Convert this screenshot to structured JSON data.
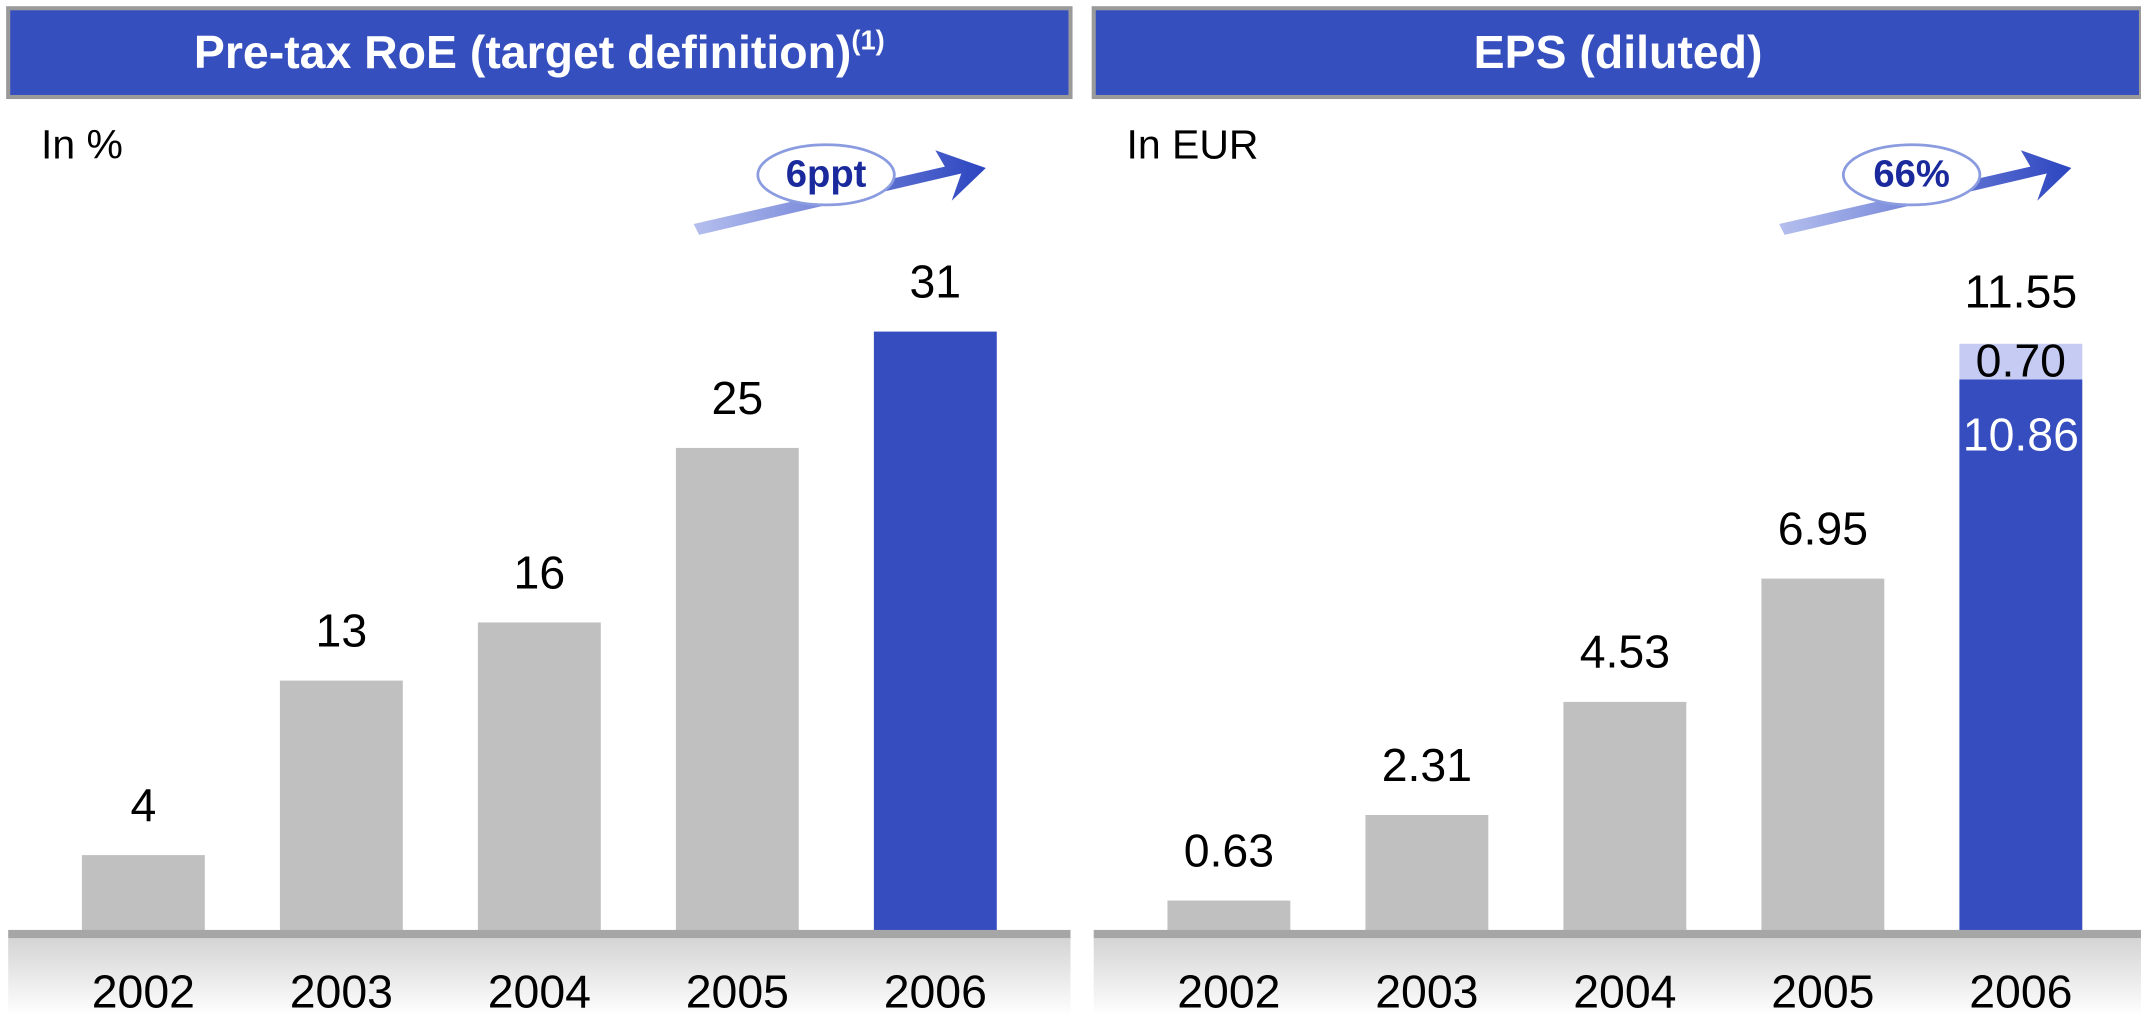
{
  "chart_data": [
    {
      "type": "bar",
      "title": "Pre-tax RoE (target definition)",
      "title_superscript": "(1)",
      "unit_label": "In %",
      "annotation": "6ppt",
      "categories": [
        "2002",
        "2003",
        "2004",
        "2005",
        "2006"
      ],
      "series": [
        {
          "values": [
            4,
            13,
            16,
            25,
            31
          ],
          "colors": [
            "#c0c0c0",
            "#c0c0c0",
            "#c0c0c0",
            "#c0c0c0",
            "#354dbe"
          ]
        }
      ],
      "ylim": [
        0,
        35
      ]
    },
    {
      "type": "stacked_bar",
      "title": "EPS (diluted)",
      "unit_label": "In EUR",
      "annotation": "66%",
      "categories": [
        "2002",
        "2003",
        "2004",
        "2005",
        "2006"
      ],
      "series": [
        {
          "values": [
            0.63,
            2.31,
            4.53,
            6.95,
            10.86
          ],
          "colors": [
            "#c0c0c0",
            "#c0c0c0",
            "#c0c0c0",
            "#c0c0c0",
            "#354dbe"
          ]
        },
        {
          "values": [
            null,
            null,
            null,
            null,
            0.7
          ],
          "value_labels": [
            null,
            null,
            null,
            null,
            "0.70"
          ],
          "colors": [
            null,
            null,
            null,
            null,
            "#c5cbf2"
          ]
        }
      ],
      "totals": [
        null,
        null,
        null,
        null,
        11.55
      ],
      "ylim": [
        0,
        13
      ]
    }
  ]
}
